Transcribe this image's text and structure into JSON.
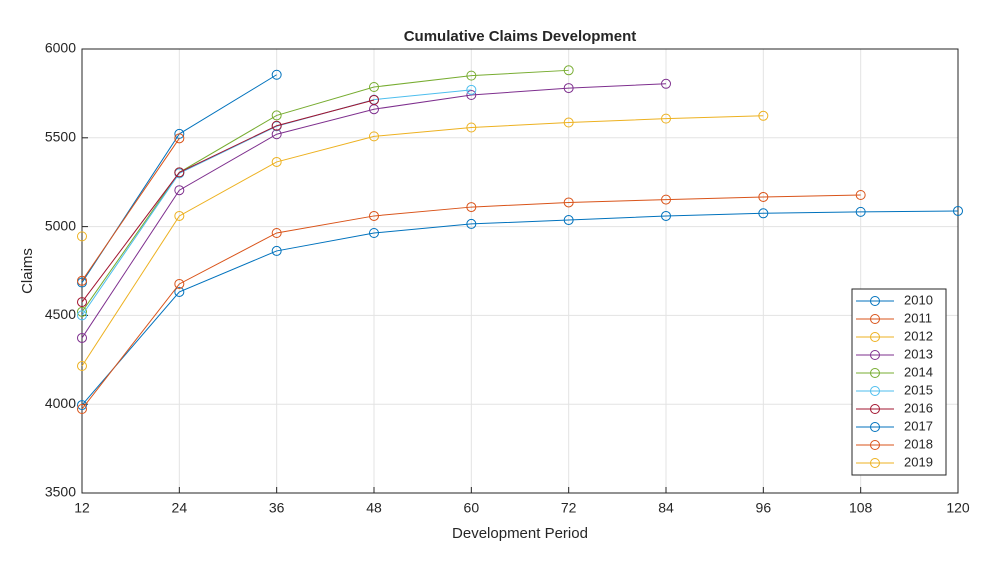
{
  "chart_data": {
    "type": "line",
    "title": "Cumulative Claims Development",
    "xlabel": "Development Period",
    "ylabel": "Claims",
    "x": [
      12,
      24,
      36,
      48,
      60,
      72,
      84,
      96,
      108,
      120
    ],
    "xlim": [
      12,
      120
    ],
    "xticks": [
      12,
      24,
      36,
      48,
      60,
      72,
      84,
      96,
      108,
      120
    ],
    "ylim": [
      3500,
      6000
    ],
    "yticks": [
      3500,
      4000,
      4500,
      5000,
      5500,
      6000
    ],
    "grid": true,
    "legend": "lower right",
    "series": [
      {
        "name": "2010",
        "color": "#0072BD",
        "values": [
          3995,
          4632,
          4863,
          4964,
          5015,
          5037,
          5060,
          5075,
          5083,
          5088
        ]
      },
      {
        "name": "2011",
        "color": "#D95319",
        "values": [
          3973,
          4677,
          4964,
          5060,
          5110,
          5136,
          5152,
          5167,
          5178,
          null
        ]
      },
      {
        "name": "2012",
        "color": "#EDB120",
        "values": [
          4215,
          5060,
          5364,
          5508,
          5558,
          5586,
          5608,
          5624,
          null,
          null
        ]
      },
      {
        "name": "2013",
        "color": "#7E2F8E",
        "values": [
          4373,
          5205,
          5520,
          5661,
          5741,
          5780,
          5804,
          null,
          null,
          null
        ]
      },
      {
        "name": "2014",
        "color": "#77AC30",
        "values": [
          4520,
          5305,
          5626,
          5786,
          5850,
          5880,
          null,
          null,
          null,
          null
        ]
      },
      {
        "name": "2015",
        "color": "#4DBEEE",
        "values": [
          4500,
          5300,
          5565,
          5715,
          5770,
          null,
          null,
          null,
          null,
          null
        ]
      },
      {
        "name": "2016",
        "color": "#A2142F",
        "values": [
          4575,
          5305,
          5568,
          5713,
          null,
          null,
          null,
          null,
          null,
          null
        ]
      },
      {
        "name": "2017",
        "color": "#0072BD",
        "values": [
          4685,
          5522,
          5855,
          null,
          null,
          null,
          null,
          null,
          null,
          null
        ]
      },
      {
        "name": "2018",
        "color": "#D95319",
        "values": [
          4695,
          5497,
          null,
          null,
          null,
          null,
          null,
          null,
          null,
          null
        ]
      },
      {
        "name": "2019",
        "color": "#EDB120",
        "values": [
          4945,
          null,
          null,
          null,
          null,
          null,
          null,
          null,
          null,
          null
        ]
      }
    ]
  }
}
